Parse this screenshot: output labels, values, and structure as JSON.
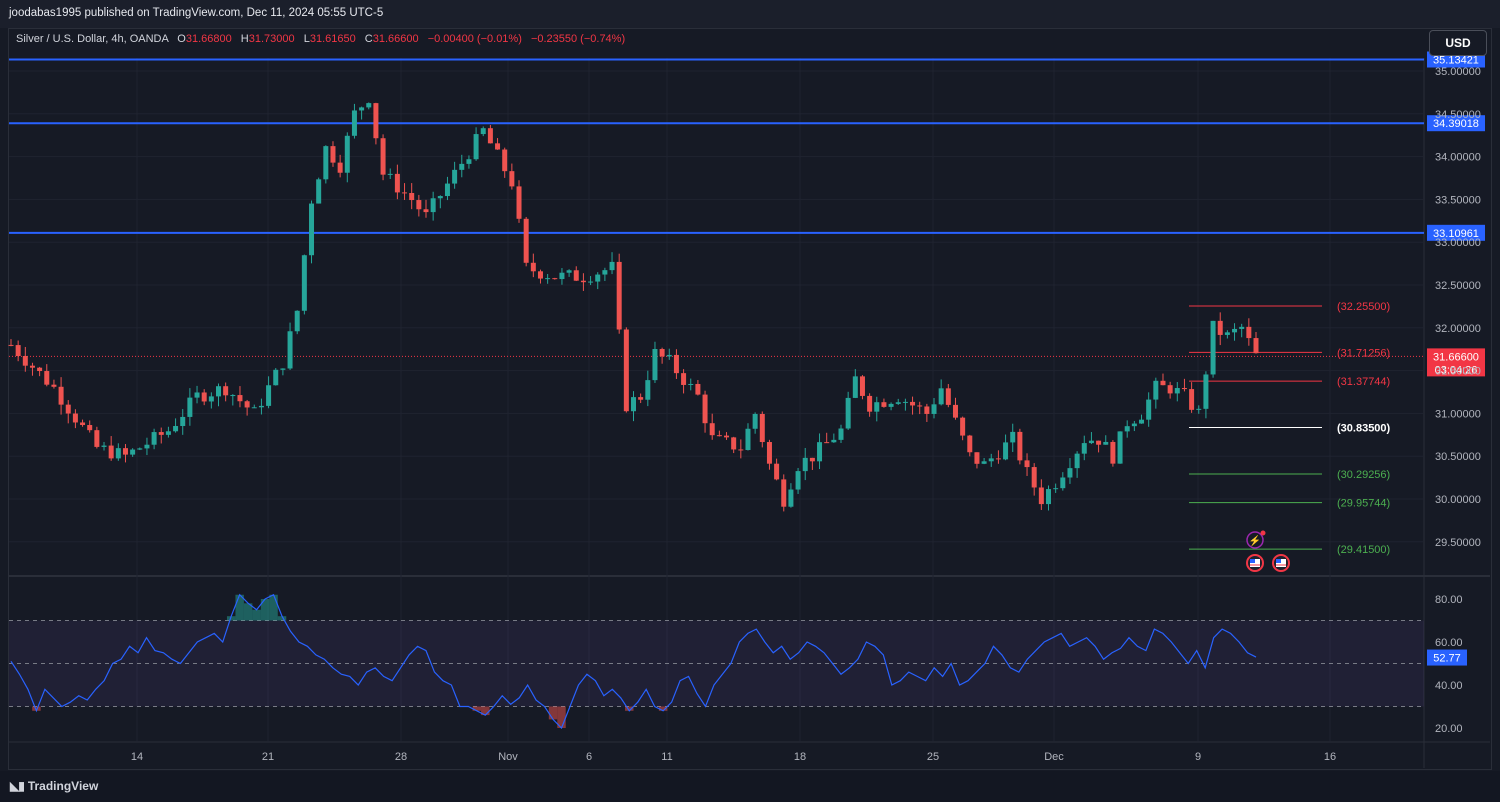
{
  "publisher_line": "joodabas1995 published on TradingView.com, Dec 11, 2024 05:55 UTC-5",
  "legend": {
    "symbol": "Silver / U.S. Dollar, 4h, OANDA",
    "open_label": "O",
    "open": "31.66800",
    "high_label": "H",
    "high": "31.73000",
    "low_label": "L",
    "low": "31.61650",
    "close_label": "C",
    "close": "31.66600",
    "change": "−0.00400 (−0.01%)",
    "change2": "−0.23550 (−0.74%)"
  },
  "currency_button": "USD",
  "footer_brand": "TradingView",
  "colors": {
    "background": "#161a25",
    "up": "#26a69a",
    "down": "#ef5350",
    "hline": "#2962ff",
    "rsi": "#2962ff",
    "level_red": "#f23645",
    "level_white": "#ffffff",
    "level_green": "#4caf50"
  },
  "chart_data": {
    "type": "candlestick",
    "price_axis": {
      "ticks": [
        "35.00000",
        "34.50000",
        "34.00000",
        "33.50000",
        "33.00000",
        "32.50000",
        "32.00000",
        "31.50000",
        "31.00000",
        "30.50000",
        "30.00000",
        "29.50000"
      ],
      "ylim": [
        29.2,
        35.1
      ]
    },
    "time_axis": {
      "ticks": [
        "14",
        "21",
        "28",
        "Nov",
        "6",
        "11",
        "18",
        "25",
        "Dec",
        "9",
        "16"
      ]
    },
    "horizontal_lines": [
      {
        "price": 35.13421,
        "label": "35.13421"
      },
      {
        "price": 34.39018,
        "label": "34.39018"
      },
      {
        "price": 33.10961,
        "label": "33.10961"
      }
    ],
    "current_price": {
      "value": "31.66600",
      "countdown": "03:04:26"
    },
    "levels": [
      {
        "price": 32.255,
        "label": "(32.25500)",
        "kind": "red"
      },
      {
        "price": 31.71256,
        "label": "(31.71256)",
        "kind": "red"
      },
      {
        "price": 31.37744,
        "label": "(31.37744)",
        "kind": "red"
      },
      {
        "price": 30.835,
        "label": "(30.83500)",
        "kind": "white"
      },
      {
        "price": 30.29256,
        "label": "(30.29256)",
        "kind": "green"
      },
      {
        "price": 29.95744,
        "label": "(29.95744)",
        "kind": "green"
      },
      {
        "price": 29.415,
        "label": "(29.41500)",
        "kind": "green"
      }
    ],
    "price_path": [
      [
        0,
        31.8
      ],
      [
        6,
        31.3
      ],
      [
        12,
        30.6
      ],
      [
        16,
        30.5
      ],
      [
        22,
        30.8
      ],
      [
        26,
        31.2
      ],
      [
        30,
        31.3
      ],
      [
        34,
        31.0
      ],
      [
        38,
        31.6
      ],
      [
        40,
        32.2
      ],
      [
        42,
        33.5
      ],
      [
        44,
        34.1
      ],
      [
        46,
        33.9
      ],
      [
        48,
        34.5
      ],
      [
        50,
        34.7
      ],
      [
        52,
        33.8
      ],
      [
        56,
        33.5
      ],
      [
        58,
        33.3
      ],
      [
        62,
        33.8
      ],
      [
        66,
        34.3
      ],
      [
        68,
        34.0
      ],
      [
        70,
        33.7
      ],
      [
        72,
        32.7
      ],
      [
        76,
        32.6
      ],
      [
        80,
        32.6
      ],
      [
        84,
        32.7
      ],
      [
        86,
        31.1
      ],
      [
        88,
        31.2
      ],
      [
        90,
        31.7
      ],
      [
        92,
        31.6
      ],
      [
        96,
        31.2
      ],
      [
        98,
        30.7
      ],
      [
        102,
        30.6
      ],
      [
        104,
        31.0
      ],
      [
        106,
        30.4
      ],
      [
        108,
        30.0
      ],
      [
        110,
        30.4
      ],
      [
        112,
        30.5
      ],
      [
        116,
        30.8
      ],
      [
        118,
        31.4
      ],
      [
        120,
        31.1
      ],
      [
        124,
        31.2
      ],
      [
        128,
        31.0
      ],
      [
        130,
        31.3
      ],
      [
        132,
        30.9
      ],
      [
        134,
        30.5
      ],
      [
        136,
        30.4
      ],
      [
        140,
        30.7
      ],
      [
        142,
        30.3
      ],
      [
        144,
        30.0
      ],
      [
        146,
        30.2
      ],
      [
        150,
        30.7
      ],
      [
        152,
        30.7
      ],
      [
        154,
        30.5
      ],
      [
        156,
        30.9
      ],
      [
        158,
        31.0
      ],
      [
        160,
        31.3
      ],
      [
        162,
        31.3
      ],
      [
        164,
        31.2
      ],
      [
        166,
        31.0
      ],
      [
        167,
        31.5
      ],
      [
        168,
        32.0
      ],
      [
        170,
        31.9
      ],
      [
        172,
        32.0
      ],
      [
        174,
        31.67
      ]
    ]
  },
  "rsi": {
    "ticks": [
      "80.00",
      "60.00",
      "40.00",
      "20.00"
    ],
    "overbought": 70,
    "oversold": 30,
    "current": "52.77",
    "values": [
      51,
      45,
      38,
      28,
      38,
      34,
      30,
      32,
      35,
      33,
      38,
      42,
      50,
      52,
      58,
      55,
      62,
      56,
      55,
      52,
      50,
      55,
      60,
      62,
      64,
      60,
      72,
      82,
      78,
      75,
      80,
      82,
      72,
      65,
      60,
      58,
      54,
      52,
      48,
      45,
      44,
      40,
      46,
      48,
      44,
      42,
      48,
      54,
      58,
      56,
      46,
      42,
      40,
      30,
      30,
      28,
      26,
      30,
      35,
      31,
      34,
      40,
      33,
      30,
      24,
      20,
      30,
      40,
      45,
      42,
      35,
      38,
      34,
      28,
      32,
      38,
      30,
      28,
      32,
      42,
      44,
      36,
      30,
      40,
      45,
      50,
      60,
      64,
      66,
      60,
      55,
      58,
      52,
      55,
      60,
      58,
      55,
      50,
      45,
      48,
      52,
      60,
      58,
      54,
      40,
      42,
      46,
      44,
      42,
      48,
      44,
      50,
      40,
      42,
      46,
      50,
      58,
      54,
      48,
      46,
      52,
      56,
      60,
      62,
      64,
      58,
      60,
      62,
      58,
      52,
      55,
      57,
      62,
      58,
      56,
      66,
      64,
      60,
      55,
      50,
      56,
      48,
      62,
      66,
      64,
      60,
      55,
      53
    ]
  }
}
